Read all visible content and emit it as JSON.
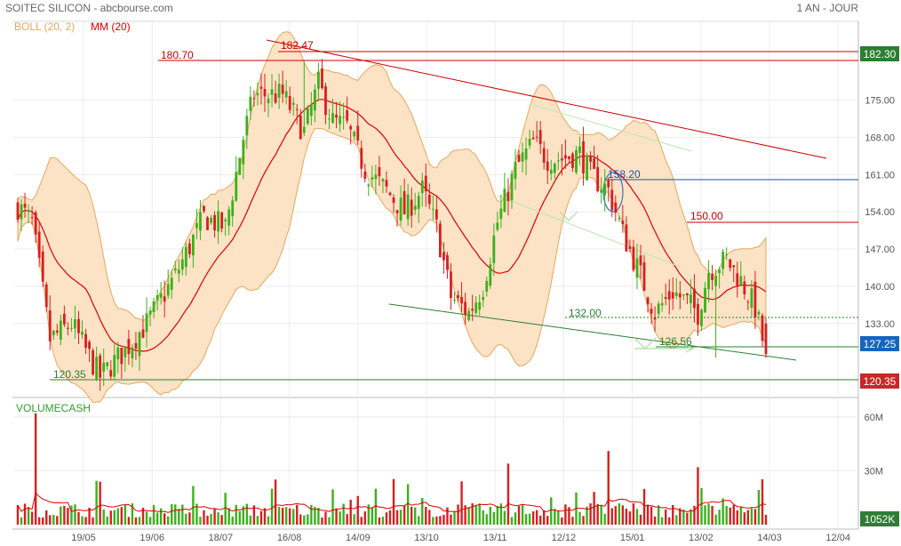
{
  "header": {
    "title": "SOITEC SILICON - abcbourse.com",
    "period": "1 AN - JOUR"
  },
  "chart_data": [
    {
      "type": "candlestick",
      "indicators": [
        {
          "name": "BOLL (20, 2)",
          "color": "#e8a65c"
        },
        {
          "name": "MM (20)",
          "color": "#e00000"
        }
      ],
      "x_ticks": [
        "19/05",
        "19/06",
        "18/07",
        "16/08",
        "14/09",
        "13/10",
        "13/11",
        "12/12",
        "15/01",
        "13/02",
        "14/03",
        "12/04"
      ],
      "y_ticks": [
        "175.00",
        "168.00",
        "161.00",
        "154.00",
        "147.00",
        "140.00",
        "133.00"
      ],
      "ylim": [
        116,
        190
      ],
      "grid": true,
      "price_tags": [
        {
          "label": "182.30",
          "value": 182.3,
          "color": "#2e7d32"
        },
        {
          "label": "127.25",
          "value": 127.25,
          "color": "#1565c0"
        },
        {
          "label": "120.35",
          "value": 120.35,
          "color": "#c62828"
        }
      ],
      "annotations": [
        {
          "label": "182.47",
          "value": 182.47,
          "color": "#cc0000"
        },
        {
          "label": "180.70",
          "value": 180.7,
          "color": "#cc0000"
        },
        {
          "label": "158.20",
          "value": 158.2,
          "color": "#1a4fa0"
        },
        {
          "label": "150.00",
          "value": 150.0,
          "color": "#cc0000"
        },
        {
          "label": "132.00",
          "value": 132.0,
          "color": "#2e7d32"
        },
        {
          "label": "126.56",
          "value": 126.56,
          "color": "#2e7d32"
        },
        {
          "label": "120.35",
          "value": 120.35,
          "color": "#2e7d32"
        }
      ],
      "last_close": 127.25,
      "colors": {
        "up": "#3cb01c",
        "down": "#d62020",
        "band_fill": "#fde3c6",
        "band_line": "#e8a65c",
        "ma": "#e00000"
      }
    },
    {
      "type": "bar",
      "title": "VOLUMECASH",
      "y_ticks": [
        "60M",
        "30M"
      ],
      "last_value_label": "1052K",
      "colors": {
        "up": "#3cb01c",
        "down": "#d62020",
        "avg_line": "#e00000"
      }
    }
  ]
}
